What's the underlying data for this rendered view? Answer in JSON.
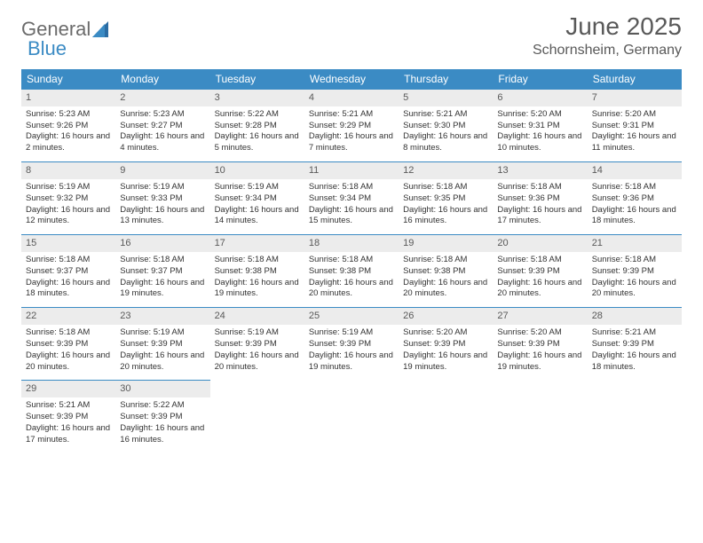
{
  "logo": {
    "word1": "General",
    "word2": "Blue"
  },
  "title": "June 2025",
  "location": "Schornsheim, Germany",
  "colors": {
    "header_bg": "#3b8bc4",
    "header_text": "#ffffff",
    "daynum_bg": "#ececec",
    "daynum_border": "#3b8bc4",
    "text": "#333333",
    "title_color": "#595959"
  },
  "day_headers": [
    "Sunday",
    "Monday",
    "Tuesday",
    "Wednesday",
    "Thursday",
    "Friday",
    "Saturday"
  ],
  "weeks": [
    [
      {
        "n": "1",
        "sr": "5:23 AM",
        "ss": "9:26 PM",
        "dl": "16 hours and 2 minutes."
      },
      {
        "n": "2",
        "sr": "5:23 AM",
        "ss": "9:27 PM",
        "dl": "16 hours and 4 minutes."
      },
      {
        "n": "3",
        "sr": "5:22 AM",
        "ss": "9:28 PM",
        "dl": "16 hours and 5 minutes."
      },
      {
        "n": "4",
        "sr": "5:21 AM",
        "ss": "9:29 PM",
        "dl": "16 hours and 7 minutes."
      },
      {
        "n": "5",
        "sr": "5:21 AM",
        "ss": "9:30 PM",
        "dl": "16 hours and 8 minutes."
      },
      {
        "n": "6",
        "sr": "5:20 AM",
        "ss": "9:31 PM",
        "dl": "16 hours and 10 minutes."
      },
      {
        "n": "7",
        "sr": "5:20 AM",
        "ss": "9:31 PM",
        "dl": "16 hours and 11 minutes."
      }
    ],
    [
      {
        "n": "8",
        "sr": "5:19 AM",
        "ss": "9:32 PM",
        "dl": "16 hours and 12 minutes."
      },
      {
        "n": "9",
        "sr": "5:19 AM",
        "ss": "9:33 PM",
        "dl": "16 hours and 13 minutes."
      },
      {
        "n": "10",
        "sr": "5:19 AM",
        "ss": "9:34 PM",
        "dl": "16 hours and 14 minutes."
      },
      {
        "n": "11",
        "sr": "5:18 AM",
        "ss": "9:34 PM",
        "dl": "16 hours and 15 minutes."
      },
      {
        "n": "12",
        "sr": "5:18 AM",
        "ss": "9:35 PM",
        "dl": "16 hours and 16 minutes."
      },
      {
        "n": "13",
        "sr": "5:18 AM",
        "ss": "9:36 PM",
        "dl": "16 hours and 17 minutes."
      },
      {
        "n": "14",
        "sr": "5:18 AM",
        "ss": "9:36 PM",
        "dl": "16 hours and 18 minutes."
      }
    ],
    [
      {
        "n": "15",
        "sr": "5:18 AM",
        "ss": "9:37 PM",
        "dl": "16 hours and 18 minutes."
      },
      {
        "n": "16",
        "sr": "5:18 AM",
        "ss": "9:37 PM",
        "dl": "16 hours and 19 minutes."
      },
      {
        "n": "17",
        "sr": "5:18 AM",
        "ss": "9:38 PM",
        "dl": "16 hours and 19 minutes."
      },
      {
        "n": "18",
        "sr": "5:18 AM",
        "ss": "9:38 PM",
        "dl": "16 hours and 20 minutes."
      },
      {
        "n": "19",
        "sr": "5:18 AM",
        "ss": "9:38 PM",
        "dl": "16 hours and 20 minutes."
      },
      {
        "n": "20",
        "sr": "5:18 AM",
        "ss": "9:39 PM",
        "dl": "16 hours and 20 minutes."
      },
      {
        "n": "21",
        "sr": "5:18 AM",
        "ss": "9:39 PM",
        "dl": "16 hours and 20 minutes."
      }
    ],
    [
      {
        "n": "22",
        "sr": "5:18 AM",
        "ss": "9:39 PM",
        "dl": "16 hours and 20 minutes."
      },
      {
        "n": "23",
        "sr": "5:19 AM",
        "ss": "9:39 PM",
        "dl": "16 hours and 20 minutes."
      },
      {
        "n": "24",
        "sr": "5:19 AM",
        "ss": "9:39 PM",
        "dl": "16 hours and 20 minutes."
      },
      {
        "n": "25",
        "sr": "5:19 AM",
        "ss": "9:39 PM",
        "dl": "16 hours and 19 minutes."
      },
      {
        "n": "26",
        "sr": "5:20 AM",
        "ss": "9:39 PM",
        "dl": "16 hours and 19 minutes."
      },
      {
        "n": "27",
        "sr": "5:20 AM",
        "ss": "9:39 PM",
        "dl": "16 hours and 19 minutes."
      },
      {
        "n": "28",
        "sr": "5:21 AM",
        "ss": "9:39 PM",
        "dl": "16 hours and 18 minutes."
      }
    ],
    [
      {
        "n": "29",
        "sr": "5:21 AM",
        "ss": "9:39 PM",
        "dl": "16 hours and 17 minutes."
      },
      {
        "n": "30",
        "sr": "5:22 AM",
        "ss": "9:39 PM",
        "dl": "16 hours and 16 minutes."
      },
      null,
      null,
      null,
      null,
      null
    ]
  ],
  "labels": {
    "sunrise_prefix": "Sunrise: ",
    "sunset_prefix": "Sunset: ",
    "daylight_prefix": "Daylight: "
  }
}
